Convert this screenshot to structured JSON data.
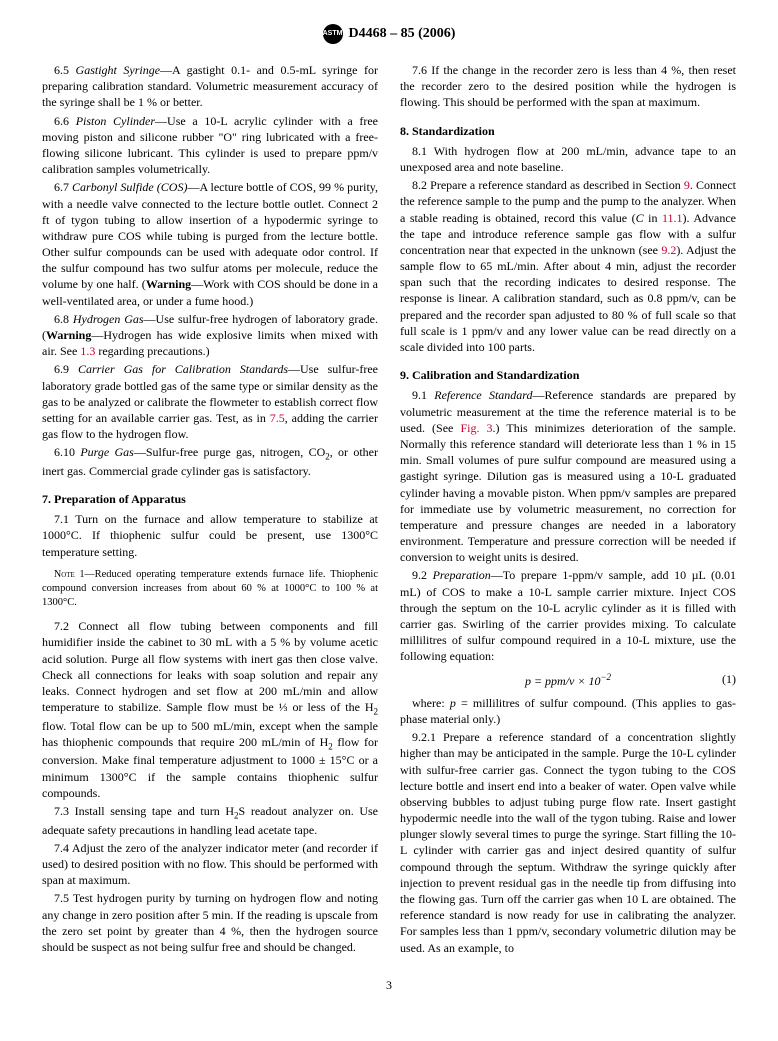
{
  "header": {
    "designation": "D4468 – 85  (2006)"
  },
  "left": {
    "p65": {
      "num": "6.5",
      "title": "Gastight Syringe",
      "text": "—A gastight 0.1- and 0.5-mL syringe for preparing calibration standard. Volumetric measurement accuracy of the syringe shall be 1 % or better."
    },
    "p66": {
      "num": "6.6",
      "title": "Piston Cylinder",
      "text": "—Use a 10-L acrylic cylinder with a free moving piston and silicone rubber \"O\" ring lubricated with a free-flowing silicone lubricant. This cylinder is used to prepare ppm/v calibration samples volumetrically."
    },
    "p67": {
      "num": "6.7",
      "title": "Carbonyl Sulfide (COS)",
      "text": "—A lecture bottle of COS, 99 % purity, with a needle valve connected to the lecture bottle outlet. Connect 2 ft of tygon tubing to allow insertion of a hypodermic syringe to withdraw pure COS while tubing is purged from the lecture bottle. Other sulfur compounds can be used with adequate odor control. If the sulfur compound has two sulfur atoms per molecule, reduce the volume by one half. (",
      "warn": "Warning",
      "warn_text": "—Work with COS should be done in a well-ventilated area, or under a fume hood.)"
    },
    "p68": {
      "num": "6.8",
      "title": "Hydrogen Gas",
      "text": "—Use sulfur-free hydrogen of laboratory grade. (",
      "warn": "Warning",
      "warn_text": "—Hydrogen has wide explosive limits when mixed with air. See ",
      "ref": "1.3",
      "tail": " regarding precautions.)"
    },
    "p69": {
      "num": "6.9",
      "title": "Carrier Gas for Calibration Standards",
      "text": "—Use sulfur-free laboratory grade bottled gas of the same type or similar density as the gas to be analyzed or calibrate the flowmeter to establish correct flow setting for an available carrier gas. Test, as in ",
      "ref": "7.5",
      "tail": ", adding the carrier gas flow to the hydrogen flow."
    },
    "p610": {
      "num": "6.10",
      "title": "Purge Gas",
      "text": "—Sulfur-free purge gas, nitrogen, CO",
      "sub": "2",
      "tail": ", or other inert gas. Commercial grade cylinder gas is satisfactory."
    },
    "s7": "7.  Preparation of Apparatus",
    "p71": {
      "num": "7.1",
      "text": " Turn on the furnace and allow temperature to stabilize at 1000°C. If thiophenic sulfur could be present, use 1300°C temperature setting."
    },
    "note1": {
      "label": "Note 1—",
      "text": "Reduced operating temperature extends furnace life. Thiophenic compound conversion increases from about 60 % at 1000°C to 100 % at 1300°C."
    },
    "p72": {
      "num": "7.2",
      "text": " Connect all flow tubing between components and fill humidifier inside the cabinet to 30 mL with a 5 % by volume acetic acid solution. Purge all flow systems with inert gas then close valve. Check all connections for leaks with soap solution and repair any leaks. Connect hydrogen and set flow at 200 mL/min and allow temperature to stabilize. Sample flow must be ⅓ or less of the H",
      "sub1": "2",
      "mid": " flow. Total flow can be up to 500 mL/min, except when the sample has thiophenic compounds that require 200 mL/min of H",
      "sub2": "2",
      "tail": " flow for conversion. Make final temperature adjustment to 1000 ± 15°C or a minimum 1300°C if the sample contains thiophenic sulfur compounds."
    },
    "p73": {
      "num": "7.3",
      "text": " Install sensing tape and turn H",
      "sub": "2",
      "tail": "S readout analyzer on. Use adequate safety precautions in handling lead acetate tape."
    },
    "p74": {
      "num": "7.4",
      "text": " Adjust the zero of the analyzer indicator meter (and recorder if used) to desired position with no flow. This should be performed with span at maximum."
    },
    "p75": {
      "num": "7.5",
      "text": " Test hydrogen purity by turning on hydrogen flow and noting any change in zero position after 5 min. If the reading is upscale from the zero set point by greater than 4 %, then the hydrogen source should be suspect as not being sulfur free and should be changed."
    }
  },
  "right": {
    "p76": {
      "num": "7.6",
      "text": " If the change in the recorder zero is less than 4 %, then reset the recorder zero to the desired position while the hydrogen is flowing. This should be performed with the span at maximum."
    },
    "s8": "8.  Standardization",
    "p81": {
      "num": "8.1",
      "text": " With hydrogen flow at 200 mL/min, advance tape to an unexposed area and note baseline."
    },
    "p82": {
      "num": "8.2",
      "text1": " Prepare a reference standard as described in Section ",
      "ref1": "9",
      "text2": ". Connect the reference sample to the pump and the pump to the analyzer. When a stable reading is obtained, record this value (",
      "cvar": "C",
      "text3": " in ",
      "ref2": "11.1",
      "text4": "). Advance the tape and introduce reference sample gas flow with a sulfur concentration near that expected in the unknown (see ",
      "ref3": "9.2",
      "text5": "). Adjust the sample flow to 65 mL/min. After about 4 min, adjust the recorder span such that the recording indicates to desired response. The response is linear. A calibration standard, such as 0.8 ppm/v, can be prepared and the recorder span adjusted to 80 % of full scale so that full scale is 1 ppm/v and any lower value can be read directly on a scale divided into 100 parts."
    },
    "s9": "9.  Calibration and Standardization",
    "p91": {
      "num": "9.1",
      "title": "Reference Standard",
      "text1": "—Reference standards are prepared by volumetric measurement at the time the reference material is to be used. (See ",
      "ref": "Fig. 3",
      "text2": ".) This minimizes deterioration of the sample. Normally this reference standard will deteriorate less than 1 % in 15 min. Small volumes of pure sulfur compound are measured using a gastight syringe. Dilution gas is measured using a 10-L graduated cylinder having a movable piston. When ppm/v samples are prepared for immediate use by volumetric measurement, no correction for temperature and pressure changes are needed in a laboratory environment. Temperature and pressure correction will be needed if conversion to weight units is desired."
    },
    "p92": {
      "num": "9.2",
      "title": "Preparation",
      "text": "—To prepare 1-ppm/v sample, add 10 µL (0.01 mL) of COS to make a 10-L sample carrier mixture. Inject COS through the septum on the 10-L acrylic cylinder as it is filled with carrier gas. Swirling of the carrier provides mixing. To calculate millilitres of sulfur compound required in a 10-L mixture, use the following equation:"
    },
    "eq": {
      "formula": "p = ppm/v × 10",
      "sup": "−2",
      "num": "(1)"
    },
    "p92w": {
      "text1": "where: ",
      "pvar": "p",
      "text2": " = millilitres of sulfur compound. (This applies to gas-phase material only.)"
    },
    "p921": {
      "num": "9.2.1",
      "text": " Prepare a reference standard of a concentration slightly higher than may be anticipated in the sample. Purge the 10-L cylinder with sulfur-free carrier gas. Connect the tygon tubing to the COS lecture bottle and insert end into a beaker of water. Open valve while observing bubbles to adjust tubing purge flow rate. Insert gastight hypodermic needle into the wall of the tygon tubing. Raise and lower plunger slowly several times to purge the syringe. Start filling the 10-L cylinder with carrier gas and inject desired quantity of sulfur compound through the septum. Withdraw the syringe quickly after injection to prevent residual gas in the needle tip from diffusing into the flowing gas. Turn off the carrier gas when 10 L are obtained. The reference standard is now ready for use in calibrating the analyzer. For samples less than 1 ppm/v, secondary volumetric dilution may be used. As an example, to"
    }
  },
  "footer": {
    "page": "3"
  }
}
